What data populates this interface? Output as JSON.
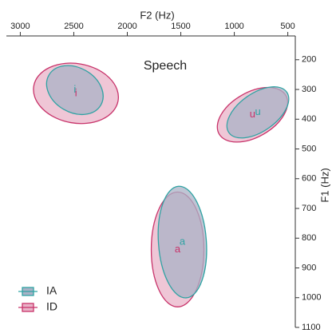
{
  "chart_data": {
    "type": "ellipse",
    "title": "Speech",
    "x_label": "F2 (Hz)",
    "y_label": "F1 (Hz)",
    "xlim": [
      3130,
      430
    ],
    "ylim": [
      120,
      1100
    ],
    "xticks": [
      3000,
      2500,
      2000,
      1500,
      1000,
      500
    ],
    "yticks": [
      200,
      300,
      400,
      500,
      600,
      700,
      800,
      900,
      1000,
      1100
    ],
    "categories": [
      "i",
      "u",
      "a"
    ],
    "legend": "bottom left",
    "series": [
      {
        "name": "ID",
        "color": "#c8336a",
        "fill": "#e9b3c8",
        "f2": [
          2480,
          830,
          1530
        ],
        "f1": [
          313,
          385,
          838
        ],
        "f2_radius": [
          400,
          360,
          246
        ],
        "f1_radius": [
          100,
          75,
          193
        ],
        "angle": [
          10,
          -30,
          0
        ]
      },
      {
        "name": "IA",
        "color": "#2fa3a3",
        "fill": "#a9b2c6",
        "f2": [
          2490,
          780,
          1485
        ],
        "f1": [
          302,
          377,
          813
        ],
        "f2_radius": [
          280,
          330,
          224
        ],
        "f1_radius": [
          75,
          64,
          188
        ],
        "angle": [
          30,
          -35,
          -4
        ]
      }
    ]
  }
}
